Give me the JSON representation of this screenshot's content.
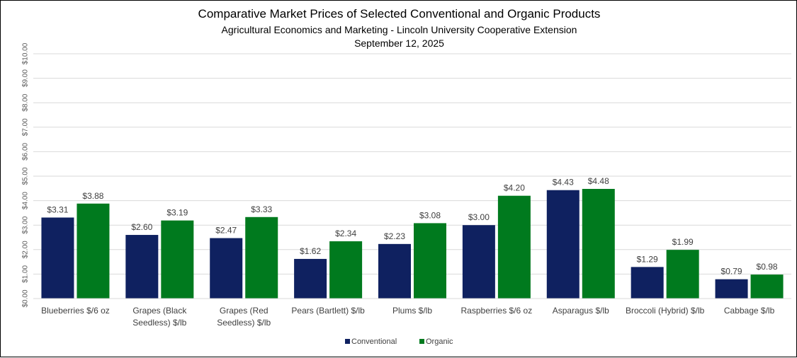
{
  "chart_data": {
    "type": "bar",
    "title": "Comparative Market Prices of Selected Conventional and Organic Products",
    "subtitle": "Agricultural Economics and Marketing - Lincoln University Cooperative Extension",
    "date": "September 12, 2025",
    "xlabel": "",
    "ylabel": "",
    "ylim": [
      0,
      10
    ],
    "yticks": [
      "$0.00",
      "$1.00",
      "$2.00",
      "$3.00",
      "$4.00",
      "$5.00",
      "$6.00",
      "$7.00",
      "$8.00",
      "$9.00",
      "$10.00"
    ],
    "grid": true,
    "legend_position": "bottom-center",
    "categories": [
      [
        "Blueberries $/6 oz"
      ],
      [
        "Grapes (Black",
        "Seedless) $/lb"
      ],
      [
        "Grapes (Red",
        "Seedless) $/lb"
      ],
      [
        "Pears (Bartlett) $/lb"
      ],
      [
        "Plums $/lb"
      ],
      [
        "Raspberries $/6 oz"
      ],
      [
        "Asparagus $/lb"
      ],
      [
        "Broccoli (Hybrid) $/lb"
      ],
      [
        "Cabbage $/lb"
      ]
    ],
    "series": [
      {
        "name": "Conventional",
        "color": "#0f2160",
        "values": [
          3.31,
          2.6,
          2.47,
          1.62,
          2.23,
          3.0,
          4.43,
          1.29,
          0.79
        ],
        "labels": [
          "$3.31",
          "$2.60",
          "$2.47",
          "$1.62",
          "$2.23",
          "$3.00",
          "$4.43",
          "$1.29",
          "$0.79"
        ]
      },
      {
        "name": "Organic",
        "color": "#007a1e",
        "values": [
          3.88,
          3.19,
          3.33,
          2.34,
          3.08,
          4.2,
          4.48,
          1.99,
          0.98
        ],
        "labels": [
          "$3.88",
          "$3.19",
          "$3.33",
          "$2.34",
          "$3.08",
          "$4.20",
          "$4.48",
          "$1.99",
          "$0.98"
        ]
      }
    ]
  }
}
